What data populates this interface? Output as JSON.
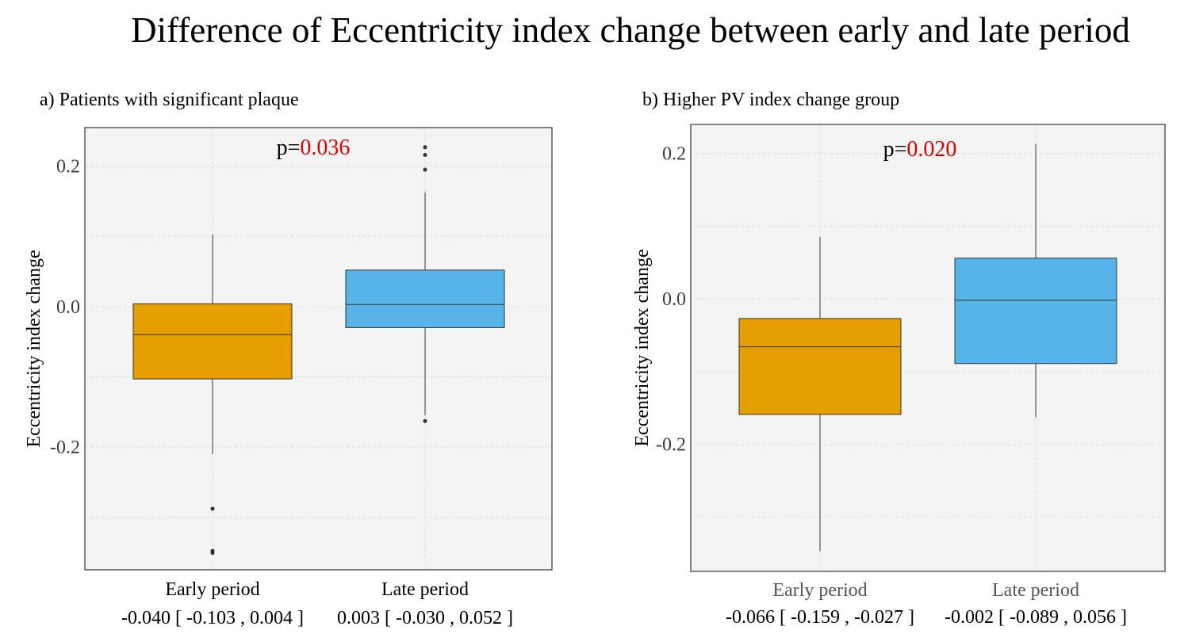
{
  "title": "Difference of Eccentricity index change between early and late period",
  "colors": {
    "early": "#E69F00",
    "late": "#56B4E9",
    "pvalue": "#E00000",
    "panel_bg": "#F4F4F4"
  },
  "chart_data": [
    {
      "type": "box",
      "title": "a) Patients with significant plaque",
      "ylabel": "Eccentricity index change",
      "xlabel": "",
      "ylim": [
        -0.375,
        0.255
      ],
      "y_ticks": [
        0.2,
        0.0,
        -0.2
      ],
      "y_tick_labels": [
        "0.2",
        "0.0",
        "-0.2"
      ],
      "grid": true,
      "p_label": "p=",
      "p_value": "0.036",
      "categories": [
        "Early period",
        "Late period"
      ],
      "stats_labels": [
        "-0.040 [ -0.103 , 0.004 ]",
        "0.003 [ -0.030 , 0.052 ]"
      ],
      "boxes": [
        {
          "name": "Early period",
          "q1": -0.103,
          "median": -0.04,
          "q3": 0.004,
          "whisker_low": -0.21,
          "whisker_high": 0.103,
          "outliers": [
            -0.288,
            -0.348,
            -0.351
          ]
        },
        {
          "name": "Late period",
          "q1": -0.03,
          "median": 0.003,
          "q3": 0.052,
          "whisker_low": -0.155,
          "whisker_high": 0.163,
          "outliers": [
            0.227,
            0.216,
            0.195,
            -0.163
          ]
        }
      ]
    },
    {
      "type": "box",
      "title": "b) Higher PV index change group",
      "ylabel": "Eccentricity index change",
      "xlabel": "",
      "ylim": [
        -0.375,
        0.24
      ],
      "y_ticks": [
        0.2,
        0.0,
        -0.2
      ],
      "y_tick_labels": [
        "0.2",
        "0.0",
        "-0.2"
      ],
      "grid": true,
      "p_label": "p=",
      "p_value": "0.020",
      "categories": [
        "Early period",
        "Late period"
      ],
      "stats_labels": [
        "-0.066 [ -0.159 , -0.027 ]",
        "-0.002 [ -0.089 , 0.056 ]"
      ],
      "boxes": [
        {
          "name": "Early period",
          "q1": -0.159,
          "median": -0.066,
          "q3": -0.027,
          "whisker_low": -0.347,
          "whisker_high": 0.085,
          "outliers": []
        },
        {
          "name": "Late period",
          "q1": -0.089,
          "median": -0.002,
          "q3": 0.056,
          "whisker_low": -0.163,
          "whisker_high": 0.213,
          "outliers": []
        }
      ]
    }
  ]
}
